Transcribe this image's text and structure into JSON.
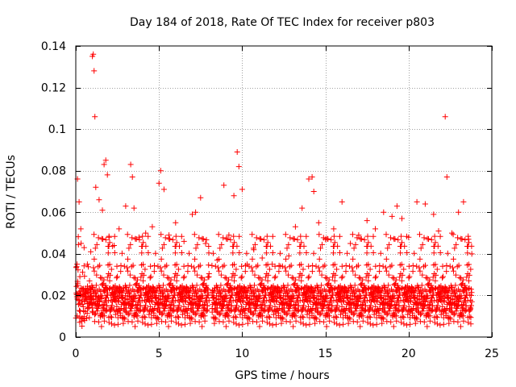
{
  "chart_data": {
    "type": "scatter",
    "title": "Day 184 of 2018, Rate Of TEC Index for receiver p803",
    "xlabel": "GPS time / hours",
    "ylabel": "ROTI / TECUs",
    "xlim": [
      0,
      25
    ],
    "ylim": [
      0,
      0.14
    ],
    "x_ticks": [
      0,
      5,
      10,
      15,
      20,
      25
    ],
    "y_ticks": [
      0,
      0.02,
      0.04,
      0.06,
      0.08,
      0.1,
      0.12,
      0.14
    ],
    "x_tick_labels": [
      "0",
      "5",
      "10",
      "15",
      "20",
      "25"
    ],
    "y_tick_labels": [
      "0",
      "0.02",
      "0.04",
      "0.06",
      "0.08",
      "0.1",
      "0.12",
      "0.14"
    ],
    "grid": true,
    "marker": "+",
    "marker_color": "#ff0000",
    "series": [
      {
        "name": "ROTI",
        "x": [
          0.1,
          0.2,
          0.3,
          0.5,
          0.7,
          0.9,
          1.0,
          1.05,
          1.1,
          1.15,
          1.2,
          1.4,
          1.6,
          1.7,
          1.8,
          1.9,
          2.0,
          2.3,
          2.6,
          3.0,
          3.3,
          3.4,
          3.5,
          3.8,
          4.2,
          4.6,
          5.0,
          5.1,
          5.3,
          5.6,
          6.0,
          6.5,
          7.0,
          7.2,
          7.5,
          7.8,
          8.0,
          8.2,
          8.5,
          8.9,
          9.2,
          9.5,
          9.7,
          9.8,
          10.0,
          10.3,
          10.7,
          11.2,
          11.8,
          12.3,
          12.8,
          13.2,
          13.6,
          14.0,
          14.2,
          14.3,
          14.6,
          15.0,
          15.5,
          16.0,
          16.5,
          17.0,
          17.5,
          18.0,
          18.5,
          19.0,
          19.3,
          19.6,
          20.0,
          20.5,
          21.0,
          21.5,
          21.8,
          22.2,
          22.3,
          22.6,
          23.0,
          23.3,
          23.6,
          23.8
        ],
        "y": [
          0.076,
          0.065,
          0.052,
          0.043,
          0.035,
          0.041,
          0.135,
          0.136,
          0.128,
          0.106,
          0.072,
          0.066,
          0.061,
          0.083,
          0.085,
          0.078,
          0.048,
          0.044,
          0.052,
          0.063,
          0.083,
          0.077,
          0.062,
          0.048,
          0.05,
          0.053,
          0.074,
          0.08,
          0.071,
          0.049,
          0.055,
          0.046,
          0.059,
          0.06,
          0.067,
          0.045,
          0.029,
          0.012,
          0.037,
          0.073,
          0.049,
          0.068,
          0.089,
          0.082,
          0.071,
          0.035,
          0.042,
          0.038,
          0.035,
          0.034,
          0.039,
          0.053,
          0.062,
          0.076,
          0.077,
          0.07,
          0.055,
          0.047,
          0.052,
          0.065,
          0.045,
          0.049,
          0.056,
          0.052,
          0.06,
          0.058,
          0.063,
          0.057,
          0.048,
          0.065,
          0.064,
          0.059,
          0.051,
          0.106,
          0.077,
          0.05,
          0.06,
          0.065,
          0.047,
          0.04
        ],
        "dense_band": {
          "x_range": [
            0,
            23.8
          ],
          "typical_range": [
            0.005,
            0.035
          ],
          "median_approx": 0.018,
          "gap_near_hour": 8.1
        }
      }
    ]
  }
}
